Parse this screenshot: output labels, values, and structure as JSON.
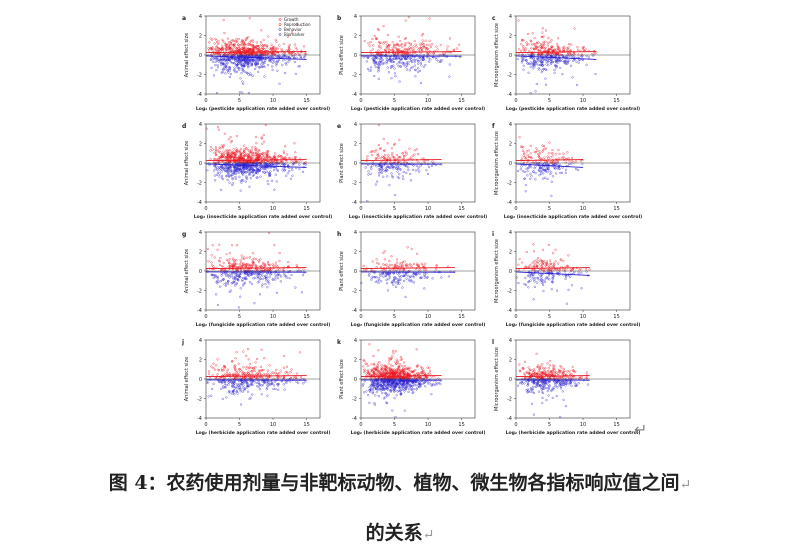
{
  "figure": {
    "legend": [
      "Growth",
      "Reproduction",
      "Behavior",
      "Biomarker"
    ],
    "x_ticks": [
      "0",
      "5",
      "10",
      "15"
    ],
    "y_ticks": [
      "4",
      "2",
      "0",
      "-2",
      "-4"
    ],
    "rows": [
      {
        "xlabel": "Log₂ (pesticide application rate added over control)",
        "panels": [
          {
            "letter": "a",
            "ylabel": "Animal effect size",
            "density": "high",
            "x_extent": 15,
            "blue_slope": "down"
          },
          {
            "letter": "b",
            "ylabel": "Plant effect size",
            "density": "medium",
            "x_extent": 15,
            "blue_slope": "flat"
          },
          {
            "letter": "c",
            "ylabel": "Microorganism effect size",
            "density": "medium",
            "x_extent": 12,
            "blue_slope": "down"
          }
        ]
      },
      {
        "xlabel": "Log₂ (insecticide application rate added over control)",
        "panels": [
          {
            "letter": "d",
            "ylabel": "Animal effect size",
            "density": "high",
            "x_extent": 15,
            "blue_slope": "down"
          },
          {
            "letter": "e",
            "ylabel": "Plant effect size",
            "density": "low",
            "x_extent": 12,
            "blue_slope": "flat"
          },
          {
            "letter": "f",
            "ylabel": "Microorganism effect size",
            "density": "low",
            "x_extent": 10,
            "blue_slope": "down"
          }
        ]
      },
      {
        "xlabel": "Log₂ (fungicide application rate added over control)",
        "panels": [
          {
            "letter": "g",
            "ylabel": "Animal effect size",
            "density": "medium",
            "x_extent": 15,
            "blue_slope": "flat"
          },
          {
            "letter": "h",
            "ylabel": "Plant effect size",
            "density": "low",
            "x_extent": 14,
            "blue_slope": "flat"
          },
          {
            "letter": "i",
            "ylabel": "Microorganism effect size",
            "density": "low",
            "x_extent": 11,
            "blue_slope": "down"
          }
        ]
      },
      {
        "xlabel": "Log₂ (herbicide application rate added over control)",
        "panels": [
          {
            "letter": "j",
            "ylabel": "Animal effect size",
            "density": "medium",
            "x_extent": 15,
            "blue_slope": "flat"
          },
          {
            "letter": "k",
            "ylabel": "Plant effect size",
            "density": "high",
            "x_extent": 12,
            "blue_slope": "flat"
          },
          {
            "letter": "l",
            "ylabel": "Microorganism effect size",
            "density": "medium",
            "x_extent": 11,
            "blue_slope": "flat"
          }
        ]
      }
    ],
    "x_range": [
      0,
      17
    ],
    "y_range": [
      -4,
      4
    ],
    "colors": {
      "positive": "#e8121c",
      "negative": "#2a1fd0",
      "neutral": "#444444"
    }
  },
  "caption": {
    "line1": "图 4：农药使用剂量与非靶标动物、植物、微生物各指标响应值之间",
    "line2": "的关系"
  }
}
